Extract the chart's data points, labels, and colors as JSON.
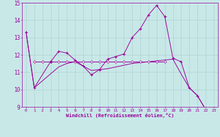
{
  "x": [
    0,
    1,
    2,
    3,
    4,
    5,
    6,
    7,
    8,
    9,
    10,
    11,
    12,
    13,
    14,
    15,
    16,
    17,
    18,
    19,
    20,
    21,
    22,
    23
  ],
  "main_curve": [
    13.3,
    10.1,
    null,
    11.6,
    12.2,
    12.1,
    11.7,
    11.35,
    10.85,
    11.15,
    11.75,
    11.9,
    12.05,
    13.0,
    13.5,
    14.3,
    14.85,
    14.2,
    11.8,
    11.6,
    10.1,
    9.65,
    8.85,
    8.7
  ],
  "line_flat": [
    null,
    11.6,
    11.6,
    11.6,
    11.6,
    11.6,
    11.6,
    11.6,
    11.6,
    11.6,
    11.6,
    11.6,
    11.6,
    11.6,
    11.6,
    11.6,
    11.6,
    11.6,
    null,
    null,
    null,
    null,
    null,
    null
  ],
  "line_diag": [
    13.3,
    10.1,
    10.5,
    10.9,
    11.3,
    11.5,
    11.6,
    11.35,
    11.1,
    11.15,
    11.2,
    11.3,
    11.4,
    11.5,
    11.55,
    11.6,
    11.65,
    11.7,
    11.75,
    10.9,
    10.1,
    9.65,
    8.85,
    8.7
  ],
  "xlim": [
    -0.5,
    23.5
  ],
  "ylim": [
    9,
    15
  ],
  "yticks": [
    9,
    10,
    11,
    12,
    13,
    14,
    15
  ],
  "xticks": [
    0,
    1,
    2,
    3,
    4,
    5,
    6,
    7,
    8,
    9,
    10,
    11,
    12,
    13,
    14,
    15,
    16,
    17,
    18,
    19,
    20,
    21,
    22,
    23
  ],
  "xlabel": "Windchill (Refroidissement éolien,°C)",
  "color": "#990099",
  "bg_color": "#c8e8e8",
  "grid_color": "#aacccc",
  "font_color": "#990099",
  "marker_main": "+",
  "marker_flat": "D"
}
